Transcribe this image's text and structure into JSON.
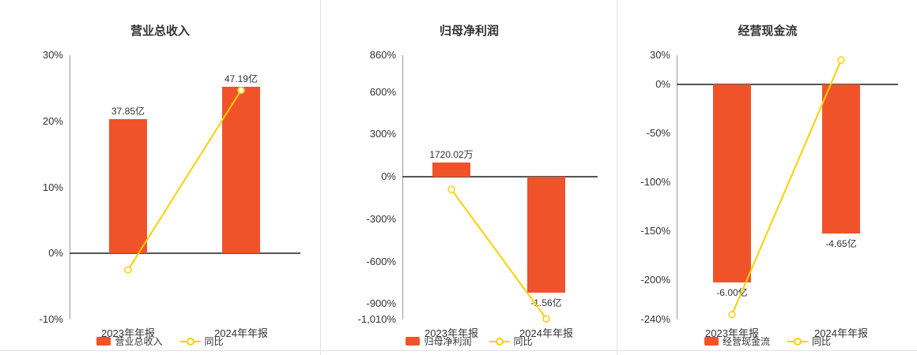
{
  "colors": {
    "bar": "#f0532a",
    "line": "#fdd000",
    "zero_line": "#555555",
    "axis_line": "#999999",
    "text": "#333333",
    "divider": "#e3e3e3"
  },
  "chart_data": [
    {
      "type": "bar+line",
      "title": "营业总收入",
      "categories": [
        "2023年年报",
        "2024年年报"
      ],
      "bar_series": {
        "name": "营业总收入",
        "value_labels": [
          "37.85亿",
          "47.19亿"
        ],
        "plot_values_pct": [
          20.3,
          25.2
        ]
      },
      "line_series": {
        "name": "同比",
        "values_pct": [
          -2.5,
          24.7
        ]
      },
      "y_axis": {
        "min": -10,
        "max": 30,
        "ticks": [
          {
            "label": "30%",
            "value": 30
          },
          {
            "label": "20%",
            "value": 20
          },
          {
            "label": "10%",
            "value": 10
          },
          {
            "label": "0%",
            "value": 0
          },
          {
            "label": "-10%",
            "value": -10
          }
        ]
      },
      "legend": [
        "营业总收入",
        "同比"
      ]
    },
    {
      "type": "bar+line",
      "title": "归母净利润",
      "categories": [
        "2023年年报",
        "2024年年报"
      ],
      "bar_series": {
        "name": "归母净利润",
        "value_labels": [
          "1720.02万",
          "-1.56亿"
        ],
        "plot_values_pct": [
          100,
          -820
        ]
      },
      "line_series": {
        "name": "同比",
        "values_pct": [
          -90,
          -1005
        ]
      },
      "y_axis": {
        "min": -1010,
        "max": 860,
        "ticks": [
          {
            "label": "860%",
            "value": 860
          },
          {
            "label": "600%",
            "value": 600
          },
          {
            "label": "300%",
            "value": 300
          },
          {
            "label": "0%",
            "value": 0
          },
          {
            "label": "-300%",
            "value": -300
          },
          {
            "label": "-600%",
            "value": -600
          },
          {
            "label": "-900%",
            "value": -900
          },
          {
            "label": "-1,010%",
            "value": -1010
          }
        ]
      },
      "legend": [
        "归母净利润",
        "同比"
      ]
    },
    {
      "type": "bar+line",
      "title": "经营现金流",
      "categories": [
        "2023年年报",
        "2024年年报"
      ],
      "bar_series": {
        "name": "经营现金流",
        "value_labels": [
          "-6.00亿",
          "-4.65亿"
        ],
        "plot_values_pct": [
          -202,
          -152
        ]
      },
      "line_series": {
        "name": "同比",
        "values_pct": [
          -235,
          25
        ]
      },
      "y_axis": {
        "min": -240,
        "max": 30,
        "ticks": [
          {
            "label": "30%",
            "value": 30
          },
          {
            "label": "0%",
            "value": 0
          },
          {
            "label": "-50%",
            "value": -50
          },
          {
            "label": "-100%",
            "value": -100
          },
          {
            "label": "-150%",
            "value": -150
          },
          {
            "label": "-200%",
            "value": -200
          },
          {
            "label": "-240%",
            "value": -240
          }
        ]
      },
      "legend": [
        "经营现金流",
        "同比"
      ]
    }
  ]
}
